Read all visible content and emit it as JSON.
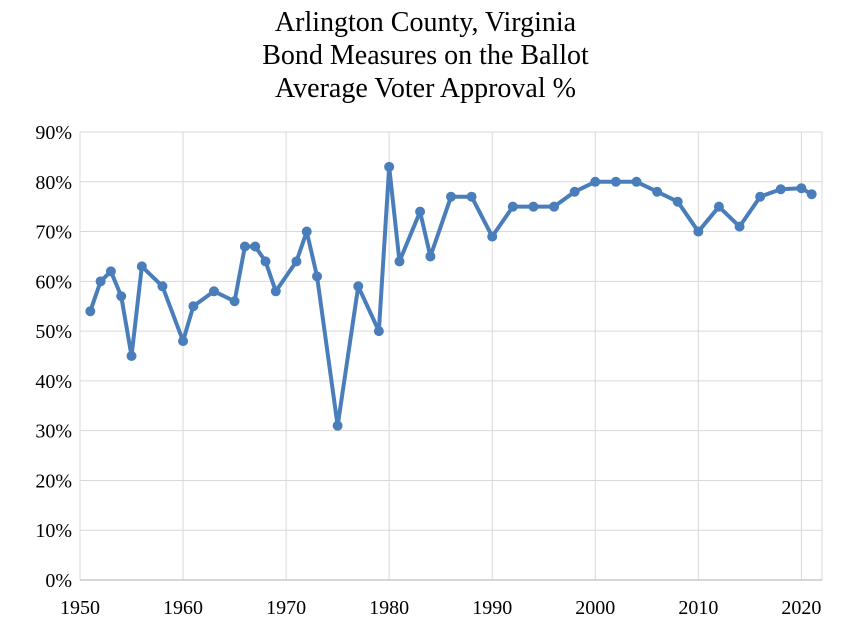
{
  "chart_data": {
    "type": "line",
    "title_lines": [
      "Arlington County, Virginia",
      "Bond Measures on the Ballot",
      "Average Voter Approval %"
    ],
    "xlabel": "",
    "ylabel": "",
    "xlim": [
      1950,
      2022
    ],
    "ylim": [
      0,
      90
    ],
    "x_ticks": [
      1950,
      1960,
      1970,
      1980,
      1990,
      2000,
      2010,
      2020
    ],
    "y_ticks": [
      0,
      10,
      20,
      30,
      40,
      50,
      60,
      70,
      80,
      90
    ],
    "y_tick_labels": [
      "0%",
      "10%",
      "20%",
      "30%",
      "40%",
      "50%",
      "60%",
      "70%",
      "80%",
      "90%"
    ],
    "grid": "horizontal",
    "legend": "none",
    "colors": {
      "line": "#4a7ebb",
      "grid": "#d9d9d9",
      "axis": "#bfbfbf"
    },
    "series": [
      {
        "x": [
          1951,
          1952,
          1953,
          1954,
          1955,
          1956,
          1958,
          1960,
          1961,
          1963,
          1965,
          1966,
          1967,
          1968,
          1969,
          1971,
          1972,
          1973,
          1975,
          1977,
          1979,
          1980,
          1981,
          1983,
          1984,
          1986,
          1988,
          1990,
          1992,
          1994,
          1996,
          1998,
          2000,
          2002,
          2004,
          2006,
          2008,
          2010,
          2012,
          2014,
          2016,
          2018,
          2020,
          2021
        ],
        "values": [
          54,
          60,
          62,
          57,
          45,
          63,
          59,
          48,
          55,
          58,
          56,
          67,
          67,
          64,
          58,
          64,
          70,
          61,
          31,
          59,
          50,
          83,
          64,
          74,
          65,
          77,
          77,
          69,
          75,
          75,
          75,
          78,
          80,
          80,
          80,
          78,
          76,
          70,
          75,
          71,
          77,
          78.5,
          78.7,
          77.5
        ]
      }
    ]
  }
}
